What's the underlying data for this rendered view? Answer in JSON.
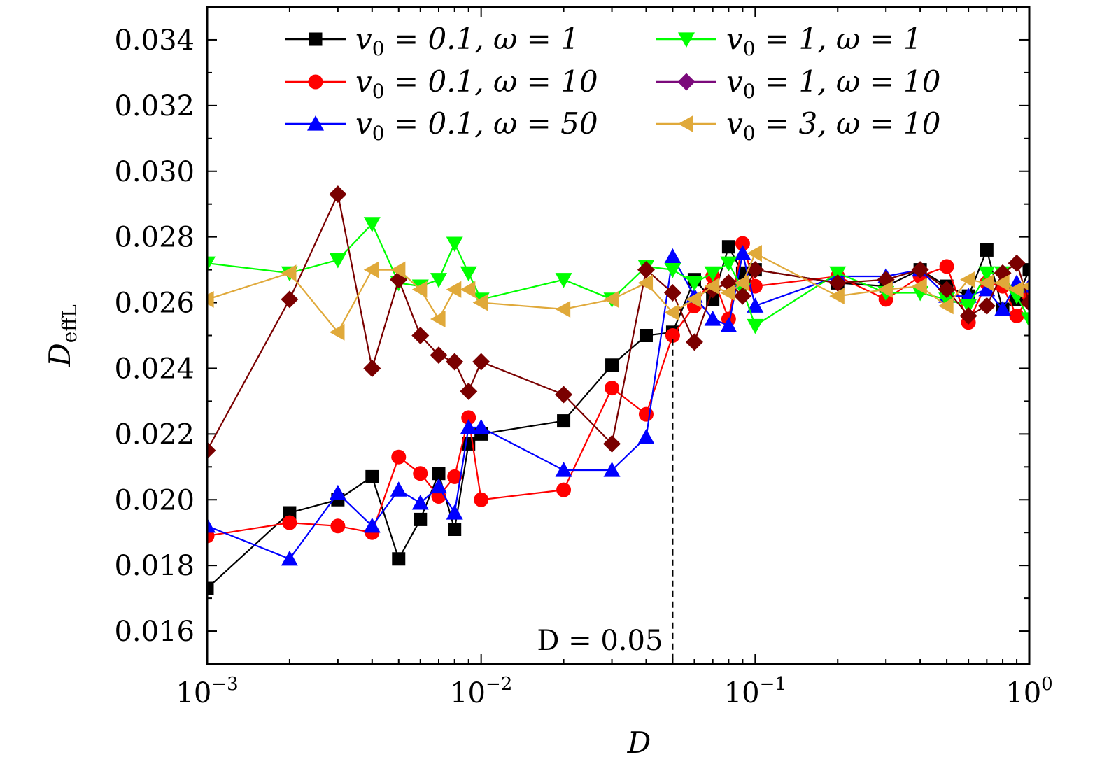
{
  "chart_data": {
    "type": "line",
    "title": "",
    "xlabel": "D",
    "ylabel": {
      "main": "D",
      "sub": "effL"
    },
    "xscale": "log",
    "xlim": [
      0.001,
      1
    ],
    "ylim": [
      0.015,
      0.035
    ],
    "x_ticks": [
      {
        "value": 0.001,
        "base": "10",
        "exp": "−3"
      },
      {
        "value": 0.01,
        "base": "10",
        "exp": "−2"
      },
      {
        "value": 0.1,
        "base": "10",
        "exp": "−1"
      },
      {
        "value": 1,
        "base": "10",
        "exp": "0"
      }
    ],
    "y_ticks": [
      "0.016",
      "0.018",
      "0.020",
      "0.022",
      "0.024",
      "0.026",
      "0.028",
      "0.030",
      "0.032",
      "0.034"
    ],
    "annotation": {
      "label": "D = 0.05",
      "x": 0.05
    },
    "legend_position": "top",
    "series": [
      {
        "name": "v0 = 0.1, ω = 1",
        "legend_parts": {
          "v": "v",
          "sub": "0",
          "rest": " = 0.1, ω = 1"
        },
        "color": "#000000",
        "marker": "square",
        "x": [
          0.001,
          0.002,
          0.003,
          0.004,
          0.005,
          0.006,
          0.007,
          0.008,
          0.009,
          0.01,
          0.02,
          0.03,
          0.04,
          0.05,
          0.06,
          0.07,
          0.08,
          0.09,
          0.1,
          0.2,
          0.3,
          0.4,
          0.5,
          0.6,
          0.7,
          0.8,
          0.9,
          1.0
        ],
        "y": [
          0.0173,
          0.0196,
          0.02,
          0.0207,
          0.0182,
          0.0194,
          0.0208,
          0.0191,
          0.0217,
          0.022,
          0.0224,
          0.0241,
          0.025,
          0.0251,
          0.0267,
          0.0261,
          0.0277,
          0.0269,
          0.027,
          0.0266,
          0.0265,
          0.027,
          0.0265,
          0.0262,
          0.0276,
          0.0258,
          0.0261,
          0.027
        ]
      },
      {
        "name": "v0 = 0.1, ω = 10",
        "legend_parts": {
          "v": "v",
          "sub": "0",
          "rest": " = 0.1, ω = 10"
        },
        "color": "#ff0000",
        "marker": "circle",
        "x": [
          0.001,
          0.002,
          0.003,
          0.004,
          0.005,
          0.006,
          0.007,
          0.008,
          0.009,
          0.01,
          0.02,
          0.03,
          0.04,
          0.05,
          0.06,
          0.07,
          0.08,
          0.09,
          0.1,
          0.2,
          0.3,
          0.4,
          0.5,
          0.6,
          0.7,
          0.8,
          0.9,
          1.0
        ],
        "y": [
          0.0189,
          0.0193,
          0.0192,
          0.019,
          0.0213,
          0.0208,
          0.0201,
          0.0207,
          0.0225,
          0.02,
          0.0203,
          0.0234,
          0.0226,
          0.025,
          0.0259,
          0.0268,
          0.0255,
          0.0278,
          0.0265,
          0.0268,
          0.0261,
          0.0268,
          0.0271,
          0.0254,
          0.0266,
          0.0265,
          0.0256,
          0.0262
        ]
      },
      {
        "name": "v0 = 0.1, ω = 50",
        "legend_parts": {
          "v": "v",
          "sub": "0",
          "rest": " = 0.1, ω = 50"
        },
        "color": "#0000ff",
        "marker": "triangle-up",
        "x": [
          0.001,
          0.002,
          0.003,
          0.004,
          0.005,
          0.006,
          0.007,
          0.008,
          0.009,
          0.01,
          0.02,
          0.03,
          0.04,
          0.05,
          0.06,
          0.07,
          0.08,
          0.09,
          0.1,
          0.2,
          0.3,
          0.4,
          0.5,
          0.6,
          0.7,
          0.8,
          0.9,
          1.0
        ],
        "y": [
          0.0192,
          0.0182,
          0.0202,
          0.0192,
          0.0203,
          0.0199,
          0.0204,
          0.0196,
          0.0222,
          0.0222,
          0.0209,
          0.0209,
          0.0219,
          0.0274,
          0.0262,
          0.0255,
          0.0253,
          0.0275,
          0.0259,
          0.0268,
          0.0268,
          0.027,
          0.0262,
          0.0262,
          0.0264,
          0.0258,
          0.0266,
          0.0265
        ]
      },
      {
        "name": "v0 = 1, ω = 1",
        "legend_parts": {
          "v": "v",
          "sub": "0",
          "rest": " = 1, ω = 1"
        },
        "color": "#00ff00",
        "marker": "triangle-down",
        "x": [
          0.001,
          0.002,
          0.003,
          0.004,
          0.005,
          0.006,
          0.007,
          0.008,
          0.009,
          0.01,
          0.02,
          0.03,
          0.04,
          0.05,
          0.06,
          0.07,
          0.08,
          0.09,
          0.1,
          0.2,
          0.3,
          0.4,
          0.5,
          0.6,
          0.7,
          0.8,
          0.9,
          1.0
        ],
        "y": [
          0.0272,
          0.0269,
          0.0273,
          0.0284,
          0.0266,
          0.0265,
          0.0267,
          0.0278,
          0.0269,
          0.0261,
          0.0267,
          0.0261,
          0.0271,
          0.027,
          0.0266,
          0.0269,
          0.0272,
          0.0264,
          0.0253,
          0.0269,
          0.0263,
          0.0263,
          0.0261,
          0.0259,
          0.0269,
          0.0269,
          0.0262,
          0.0255
        ]
      },
      {
        "name": "v0 = 1, ω = 10",
        "legend_parts": {
          "v": "v",
          "sub": "0",
          "rest": " = 1, ω = 10"
        },
        "color": "#7a0000",
        "legend_color": "#7b0a7b",
        "marker": "diamond",
        "x": [
          0.001,
          0.002,
          0.003,
          0.004,
          0.005,
          0.006,
          0.007,
          0.008,
          0.009,
          0.01,
          0.02,
          0.03,
          0.04,
          0.05,
          0.06,
          0.07,
          0.08,
          0.09,
          0.1,
          0.2,
          0.3,
          0.4,
          0.5,
          0.6,
          0.7,
          0.8,
          0.9,
          1.0
        ],
        "y": [
          0.0215,
          0.0261,
          0.0293,
          0.024,
          0.0267,
          0.025,
          0.0244,
          0.0242,
          0.0233,
          0.0242,
          0.0232,
          0.0217,
          0.027,
          0.0263,
          0.0248,
          0.0264,
          0.0266,
          0.0262,
          0.027,
          0.0266,
          0.0267,
          0.027,
          0.0264,
          0.0256,
          0.0259,
          0.0269,
          0.0272,
          0.026
        ]
      },
      {
        "name": "v0 = 3, ω = 10",
        "legend_parts": {
          "v": "v",
          "sub": "0",
          "rest": " = 3, ω = 10"
        },
        "color": "#e0a93a",
        "marker": "triangle-left",
        "x": [
          0.001,
          0.002,
          0.003,
          0.004,
          0.005,
          0.006,
          0.007,
          0.008,
          0.009,
          0.01,
          0.02,
          0.03,
          0.04,
          0.05,
          0.06,
          0.07,
          0.08,
          0.09,
          0.1,
          0.2,
          0.3,
          0.4,
          0.5,
          0.6,
          0.7,
          0.8,
          0.9,
          1.0
        ],
        "y": [
          0.0261,
          0.0269,
          0.0251,
          0.027,
          0.027,
          0.0264,
          0.0255,
          0.0264,
          0.0264,
          0.026,
          0.0258,
          0.0261,
          0.0266,
          0.0257,
          0.0261,
          0.0265,
          0.0263,
          0.0266,
          0.0275,
          0.0262,
          0.0264,
          0.0265,
          0.0259,
          0.0267,
          0.0266,
          0.0266,
          0.0264,
          0.0265
        ]
      }
    ]
  }
}
